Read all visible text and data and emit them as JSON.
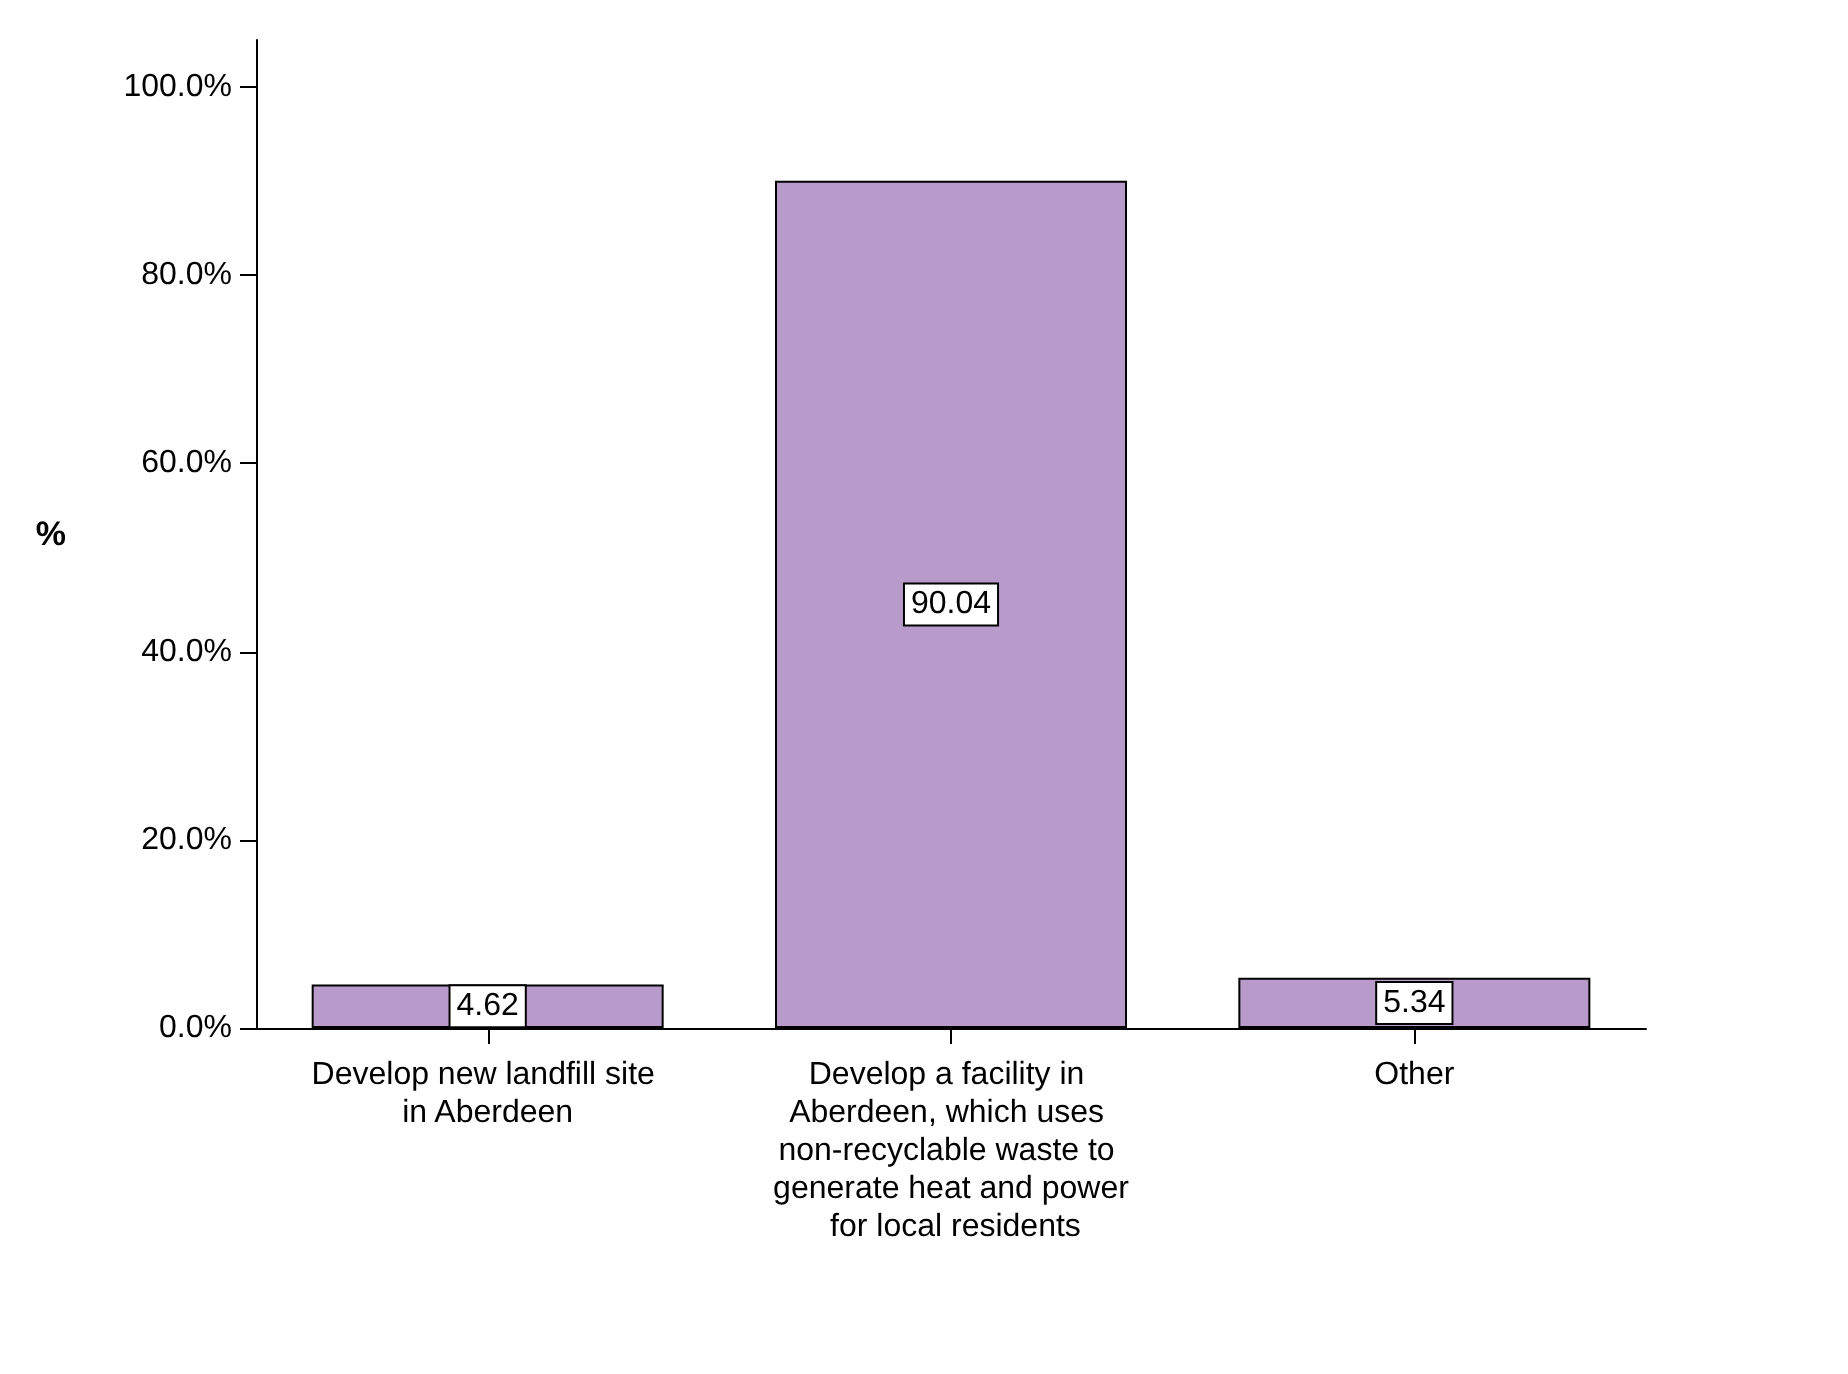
{
  "chart_data": {
    "type": "bar",
    "ylabel": "%",
    "categories": [
      "Develop new landfill site in Aberdeen",
      "Develop a facility in Aberdeen, which uses non-recyclable waste to generate heat and power for local residents",
      "Other"
    ],
    "values": [
      4.62,
      90.04,
      5.34
    ],
    "color": "#b89bcb",
    "ylim": [
      0,
      105
    ],
    "yticks": [
      {
        "value": 0,
        "label": "0.0%"
      },
      {
        "value": 20,
        "label": "20.0%"
      },
      {
        "value": 40,
        "label": "40.0%"
      },
      {
        "value": 60,
        "label": "60.0%"
      },
      {
        "value": 80,
        "label": "80.0%"
      },
      {
        "value": 100,
        "label": "100.0%"
      }
    ],
    "grid": false,
    "data_labels": true
  }
}
